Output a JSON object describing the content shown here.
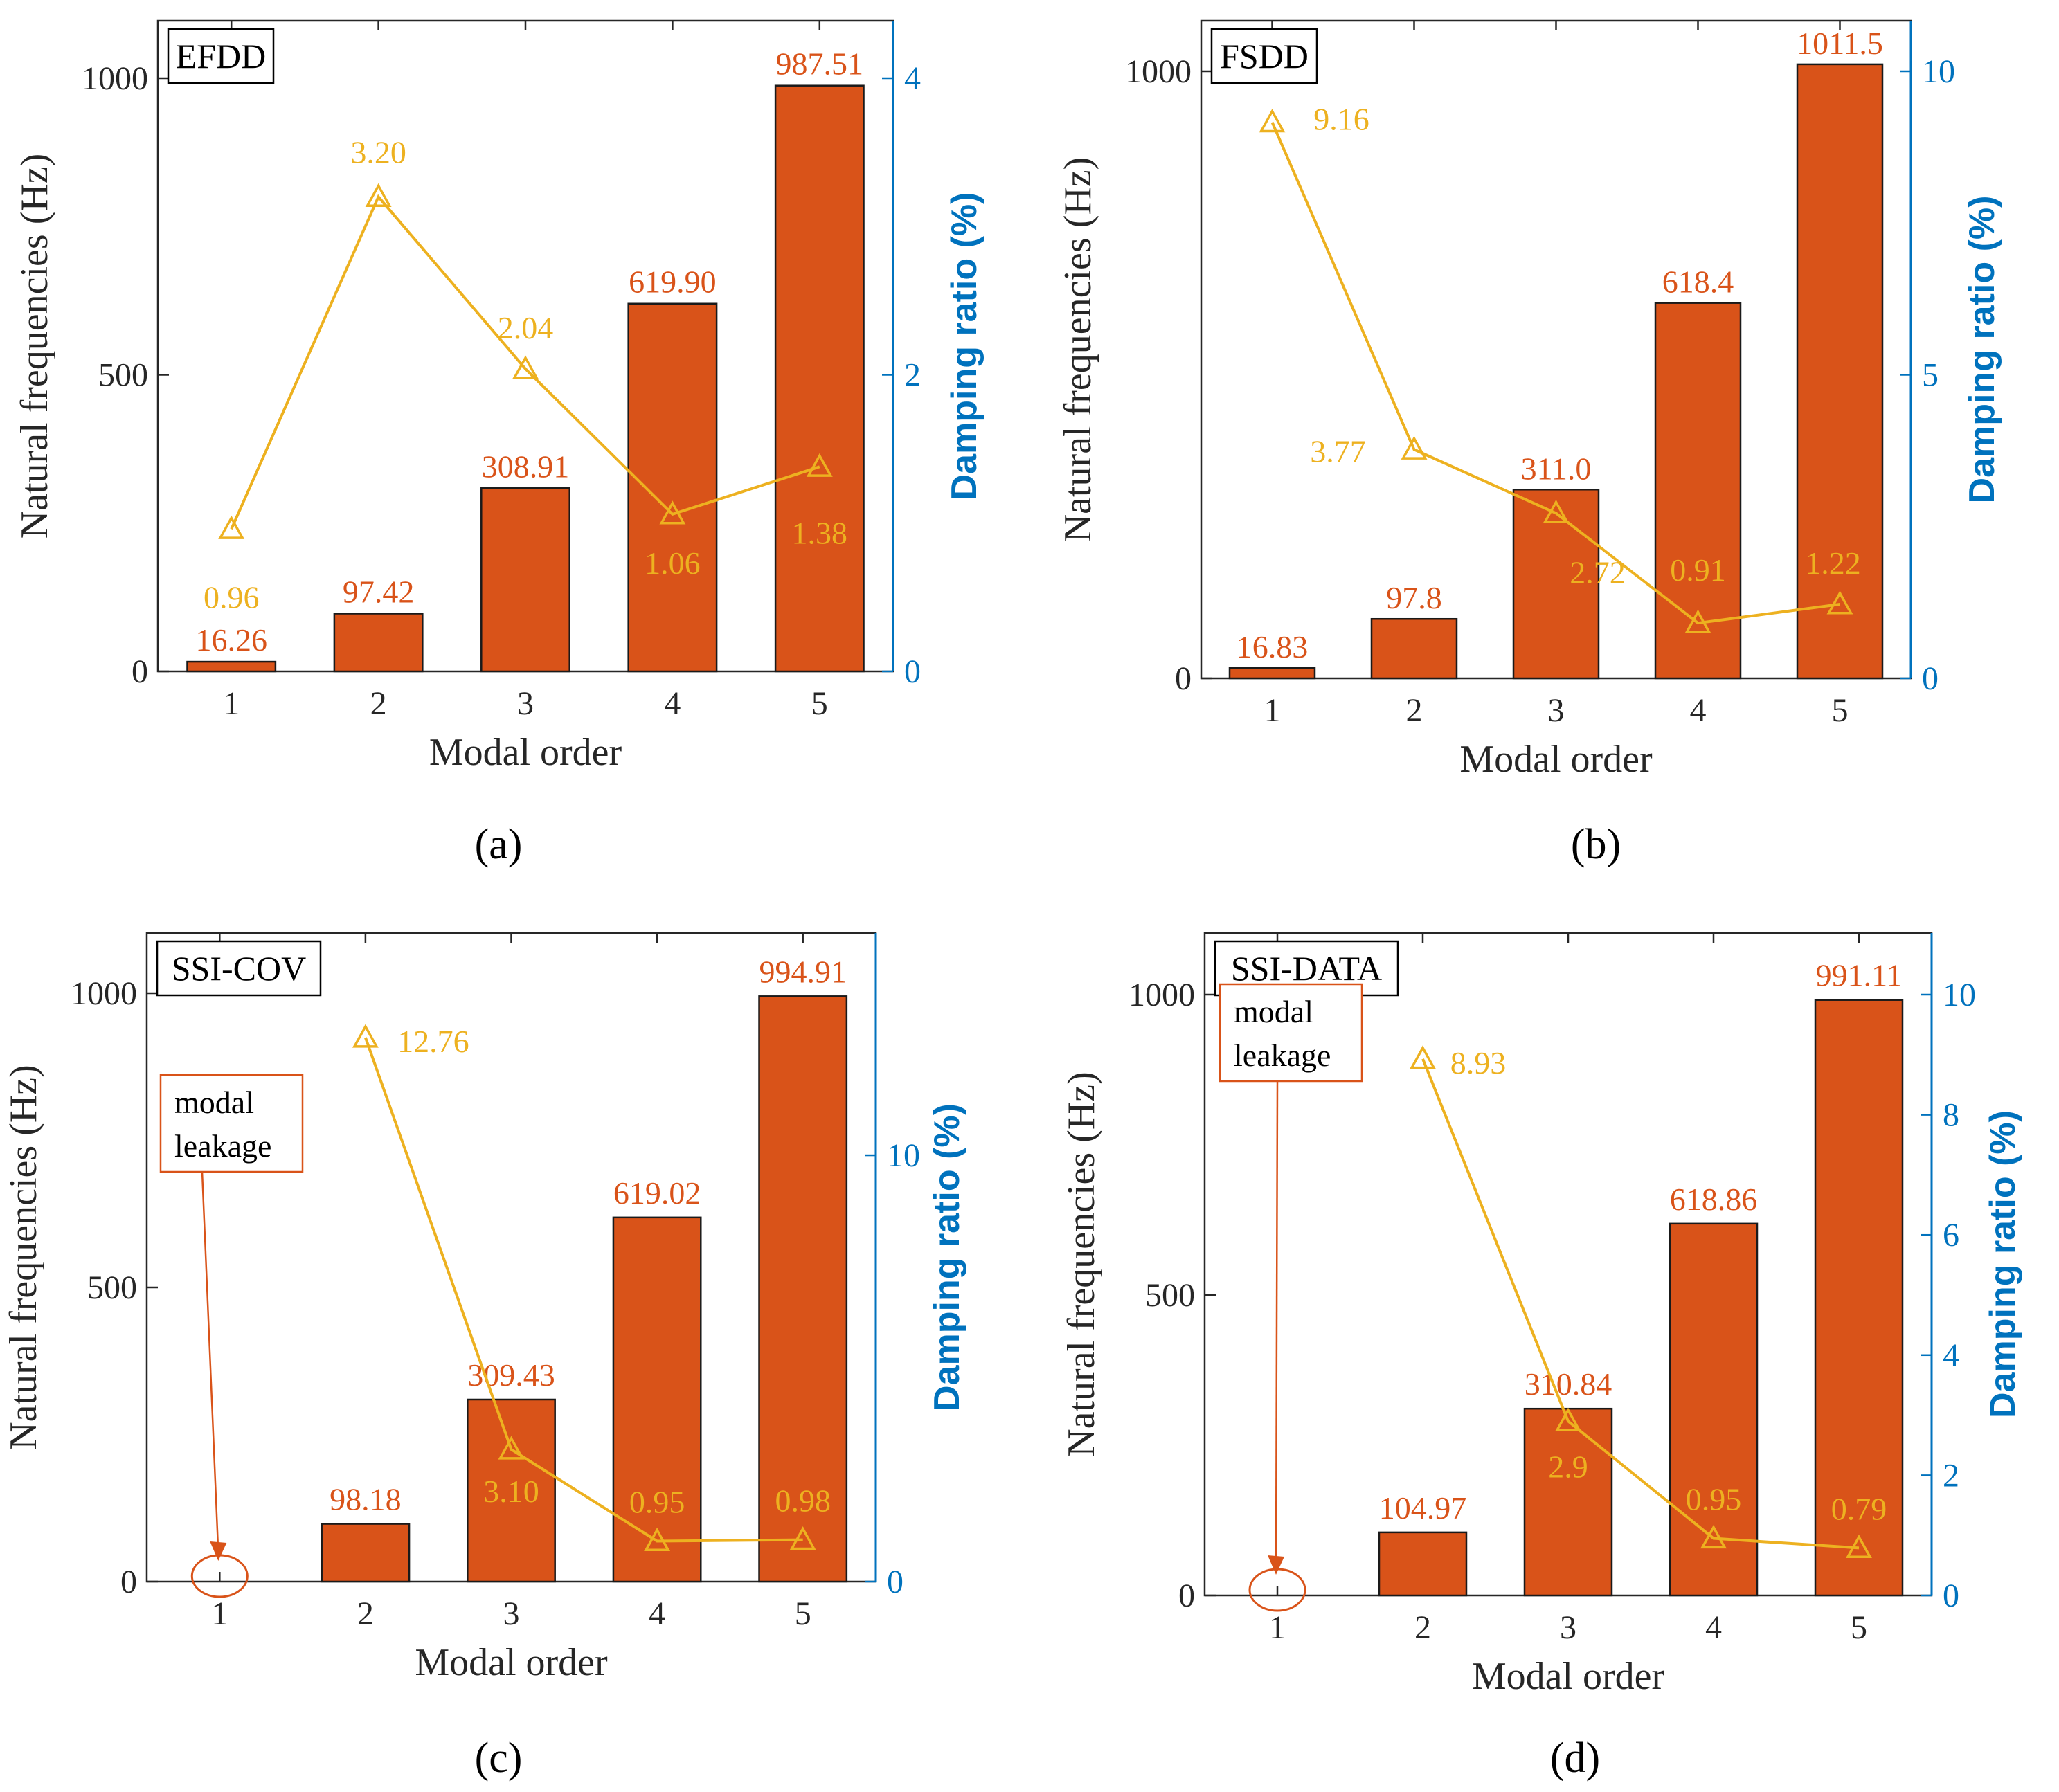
{
  "colors": {
    "bar": "#d95319",
    "bar_stroke": "#1a1a1a",
    "bar_label": "#d95319",
    "line": "#edb120",
    "right_axis": "#0072bd",
    "axis": "#262626",
    "leakage": "#d95319"
  },
  "chart_data": [
    {
      "type": "bar",
      "panel_caption": "(a)",
      "method": "EFDD",
      "xlabel": "Modal order",
      "ylabel": "Natural frequencies (Hz)",
      "ylabel_right": "Damping ratio (%)",
      "categories": [
        "1",
        "2",
        "3",
        "4",
        "5"
      ],
      "ylim": [
        0,
        1000
      ],
      "ylim_right": [
        0,
        4
      ],
      "yticks": [
        0,
        500,
        1000
      ],
      "yticks_right": [
        0,
        2,
        4
      ],
      "frequencies": [
        16.26,
        97.42,
        308.91,
        619.9,
        987.51
      ],
      "frequency_labels": [
        "16.26",
        "97.42",
        "308.91",
        "619.90",
        "987.51"
      ],
      "damping": [
        0.96,
        3.2,
        2.04,
        1.06,
        1.38
      ],
      "damping_labels": [
        "0.96",
        "3.20",
        "2.04",
        "1.06",
        "1.38"
      ],
      "note": ""
    },
    {
      "type": "bar",
      "panel_caption": "(b)",
      "method": "FSDD",
      "xlabel": "Modal order",
      "ylabel": "Natural frequencies (Hz)",
      "ylabel_right": "Damping ratio (%)",
      "categories": [
        "1",
        "2",
        "3",
        "4",
        "5"
      ],
      "ylim": [
        0,
        1000
      ],
      "ylim_right": [
        0,
        10
      ],
      "yticks": [
        0,
        1000
      ],
      "yticks_right": [
        0,
        5,
        10
      ],
      "frequencies": [
        16.83,
        97.8,
        311.0,
        618.4,
        1011.5
      ],
      "frequency_labels": [
        "16.83",
        "97.8",
        "311.0",
        "618.4",
        "1011.5"
      ],
      "damping": [
        9.16,
        3.77,
        2.72,
        0.91,
        1.22
      ],
      "damping_labels": [
        "9.16",
        "3.77",
        "2.72",
        "0.91",
        "1.22"
      ],
      "note": ""
    },
    {
      "type": "bar",
      "panel_caption": "(c)",
      "method": "SSI-COV",
      "xlabel": "Modal order",
      "ylabel": "Natural frequencies (Hz)",
      "ylabel_right": "Damping ratio (%)",
      "categories": [
        "1",
        "2",
        "3",
        "4",
        "5"
      ],
      "ylim": [
        0,
        1000
      ],
      "ylim_right": [
        0,
        13.8
      ],
      "yticks": [
        0,
        500,
        1000
      ],
      "yticks_right": [
        0,
        10
      ],
      "frequencies": [
        null,
        98.18,
        309.43,
        619.02,
        994.91
      ],
      "frequency_labels": [
        "",
        "98.18",
        "309.43",
        "619.02",
        "994.91"
      ],
      "damping": [
        null,
        12.76,
        3.1,
        0.95,
        0.98
      ],
      "damping_labels": [
        "",
        "12.76",
        "3.10",
        "0.95",
        "0.98"
      ],
      "note": [
        "modal",
        "leakage"
      ]
    },
    {
      "type": "bar",
      "panel_caption": "(d)",
      "method": "SSI-DATA",
      "xlabel": "Modal order",
      "ylabel": "Natural frequencies (Hz)",
      "ylabel_right": "Damping ratio (%)",
      "categories": [
        "1",
        "2",
        "3",
        "4",
        "5"
      ],
      "ylim": [
        0,
        1000
      ],
      "ylim_right": [
        0,
        10
      ],
      "yticks": [
        0,
        500,
        1000
      ],
      "yticks_right": [
        0,
        2,
        4,
        6,
        8,
        10
      ],
      "frequencies": [
        null,
        104.97,
        310.84,
        618.86,
        991.11
      ],
      "frequency_labels": [
        "",
        "104.97",
        "310.84",
        "618.86",
        "991.11"
      ],
      "damping": [
        null,
        8.93,
        2.9,
        0.95,
        0.79
      ],
      "damping_labels": [
        "",
        "8.93",
        "2.9",
        "0.95",
        "0.79"
      ],
      "note": [
        "modal",
        "leakage"
      ]
    }
  ]
}
